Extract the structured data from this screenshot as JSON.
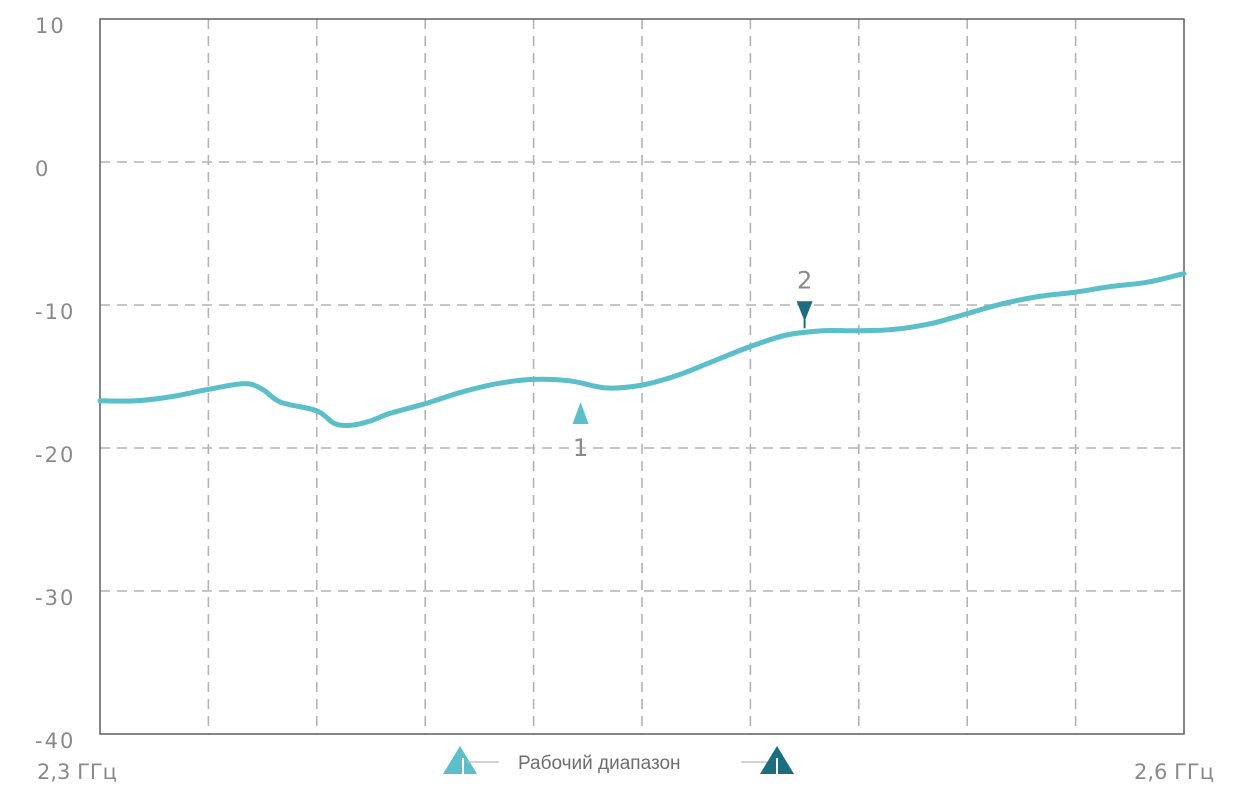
{
  "chart_data": {
    "type": "line",
    "title": "",
    "xlabel": "",
    "ylabel": "",
    "x_start_label": "2,3 ГГц",
    "x_end_label": "2,6 ГГц",
    "xlim": [
      2.3,
      2.6
    ],
    "ylim": [
      -40,
      10
    ],
    "yticks": [
      10,
      0,
      -10,
      -20,
      -30,
      -40
    ],
    "ytick_labels": [
      "10",
      "0",
      "-10",
      "-20",
      "-30",
      "-40"
    ],
    "x_grid_divisions": 10,
    "grid": true,
    "line_color": "#5bbfc9",
    "series": [
      {
        "x": [
          2.3,
          2.31,
          2.32,
          2.33,
          2.34,
          2.345,
          2.35,
          2.36,
          2.365,
          2.37,
          2.375,
          2.38,
          2.39,
          2.4,
          2.41,
          2.42,
          2.43,
          2.44,
          2.45,
          2.46,
          2.47,
          2.48,
          2.49,
          2.5,
          2.51,
          2.52,
          2.53,
          2.54,
          2.55,
          2.56,
          2.57,
          2.58,
          2.59,
          2.6
        ],
        "y": [
          -16.7,
          -16.7,
          -16.4,
          -15.9,
          -15.5,
          -15.9,
          -16.8,
          -17.4,
          -18.3,
          -18.4,
          -18.1,
          -17.6,
          -16.9,
          -16.1,
          -15.5,
          -15.2,
          -15.3,
          -15.8,
          -15.6,
          -14.9,
          -13.9,
          -12.9,
          -12.1,
          -11.8,
          -11.8,
          -11.7,
          -11.3,
          -10.6,
          -9.9,
          -9.4,
          -9.1,
          -8.7,
          -8.4,
          -7.8
        ]
      }
    ],
    "markers": [
      {
        "label": "1",
        "x": 2.433,
        "y": -17.2,
        "direction": "up",
        "color": "#5bbfc9"
      },
      {
        "label": "2",
        "x": 2.495,
        "y": -11.7,
        "direction": "down",
        "color": "#1a6e80"
      }
    ],
    "legend": {
      "text": "Рабочий диапазон",
      "placement": "bottom-center",
      "start_color": "#5bbfc9",
      "end_color": "#1a6e80"
    }
  }
}
